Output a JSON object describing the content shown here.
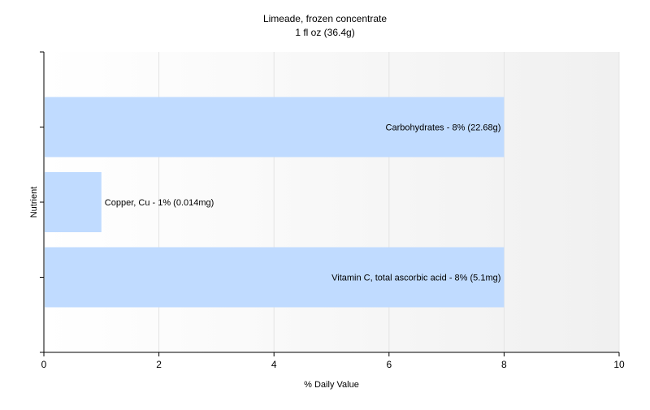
{
  "chart_data": {
    "type": "bar",
    "orientation": "horizontal",
    "title": "Limeade, frozen concentrate",
    "subtitle": "1 fl oz (36.4g)",
    "xlabel": "% Daily Value",
    "ylabel": "Nutrient",
    "xlim": [
      0,
      10
    ],
    "xticks": [
      0,
      2,
      4,
      6,
      8,
      10
    ],
    "grid": true,
    "bar_color": "#c0dbff",
    "bars": [
      {
        "label": "Carbohydrates - 8% (22.68g)",
        "value": 8
      },
      {
        "label": "Copper, Cu - 1% (0.014mg)",
        "value": 1
      },
      {
        "label": "Vitamin C, total ascorbic acid - 8% (5.1mg)",
        "value": 8
      }
    ]
  }
}
